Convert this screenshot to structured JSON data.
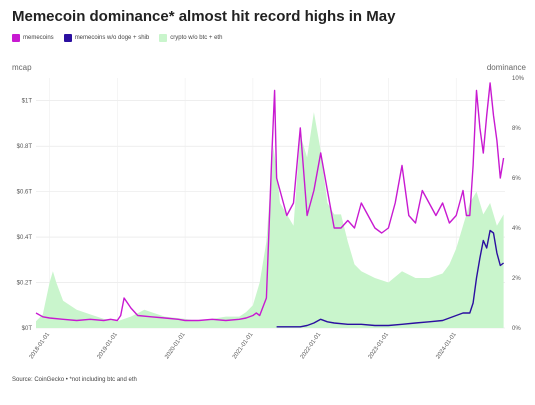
{
  "chart_data": {
    "type": "line",
    "title": "Memecoin dominance* almost hit record highs in May",
    "ylabel_left": "mcap",
    "ylabel_right": "dominance",
    "y_left_ticks": [
      "$0T",
      "$0.2T",
      "$0.4T",
      "$0.6T",
      "$0.8T",
      "$1T"
    ],
    "y_left_values": [
      0,
      0.2,
      0.4,
      0.6,
      0.8,
      1.0
    ],
    "y_right_ticks": [
      "0%",
      "2%",
      "4%",
      "6%",
      "8%",
      "10%"
    ],
    "y_right_values": [
      0,
      2,
      4,
      6,
      8,
      10
    ],
    "x_ticks": [
      "2018-01-01",
      "2019-01-01",
      "2020-01-01",
      "2021-01-01",
      "2022-01-01",
      "2023-01-01",
      "2024-01-01"
    ],
    "x_tick_years": [
      2018,
      2019,
      2020,
      2021,
      2022,
      2023,
      2024
    ],
    "xlim": [
      2017.8,
      2024.72
    ],
    "ylim_left": [
      0,
      1.1
    ],
    "ylim_right": [
      0,
      10
    ],
    "grid": true,
    "legend_position": "top-left",
    "series": [
      {
        "name": "memecoins",
        "axis": "right",
        "color": "#c81ad1",
        "style": "line",
        "x": [
          2017.8,
          2017.9,
          2018.0,
          2018.2,
          2018.4,
          2018.6,
          2018.8,
          2018.9,
          2019.0,
          2019.05,
          2019.1,
          2019.2,
          2019.3,
          2019.5,
          2019.7,
          2019.9,
          2020.0,
          2020.2,
          2020.4,
          2020.6,
          2020.8,
          2020.9,
          2021.0,
          2021.05,
          2021.1,
          2021.2,
          2021.28,
          2021.32,
          2021.35,
          2021.4,
          2021.45,
          2021.5,
          2021.6,
          2021.7,
          2021.8,
          2021.9,
          2022.0,
          2022.1,
          2022.2,
          2022.3,
          2022.4,
          2022.5,
          2022.6,
          2022.7,
          2022.8,
          2022.9,
          2023.0,
          2023.1,
          2023.2,
          2023.3,
          2023.4,
          2023.5,
          2023.6,
          2023.7,
          2023.8,
          2023.9,
          2024.0,
          2024.1,
          2024.15,
          2024.2,
          2024.25,
          2024.3,
          2024.35,
          2024.4,
          2024.45,
          2024.5,
          2024.55,
          2024.6,
          2024.65,
          2024.7
        ],
        "y": [
          0.6,
          0.45,
          0.4,
          0.35,
          0.3,
          0.35,
          0.3,
          0.35,
          0.3,
          0.5,
          1.2,
          0.8,
          0.5,
          0.45,
          0.4,
          0.35,
          0.3,
          0.3,
          0.35,
          0.3,
          0.35,
          0.4,
          0.5,
          0.6,
          0.5,
          1.2,
          7.0,
          9.5,
          6.0,
          5.5,
          5.0,
          4.5,
          5.0,
          8.0,
          4.5,
          5.5,
          7.0,
          5.5,
          4.0,
          4.0,
          4.3,
          4.0,
          5.0,
          4.5,
          4.0,
          3.8,
          4.0,
          5.0,
          6.5,
          4.5,
          4.2,
          5.5,
          5.0,
          4.5,
          5.0,
          4.2,
          4.5,
          5.5,
          4.5,
          4.5,
          6.5,
          9.5,
          8.0,
          7.0,
          8.5,
          9.8,
          8.5,
          7.5,
          6.0,
          6.8
        ]
      },
      {
        "name": "memecoins w/o doge + shib",
        "axis": "right",
        "color": "#2b0fa0",
        "style": "line",
        "x": [
          2021.35,
          2021.5,
          2021.7,
          2021.8,
          2021.9,
          2022.0,
          2022.1,
          2022.2,
          2022.4,
          2022.6,
          2022.8,
          2023.0,
          2023.2,
          2023.4,
          2023.6,
          2023.8,
          2023.9,
          2024.0,
          2024.1,
          2024.2,
          2024.25,
          2024.3,
          2024.35,
          2024.4,
          2024.45,
          2024.5,
          2024.55,
          2024.6,
          2024.65,
          2024.7
        ],
        "y": [
          0.05,
          0.05,
          0.05,
          0.1,
          0.2,
          0.35,
          0.25,
          0.2,
          0.15,
          0.15,
          0.1,
          0.1,
          0.15,
          0.2,
          0.25,
          0.3,
          0.4,
          0.5,
          0.6,
          0.6,
          1.0,
          2.0,
          2.8,
          3.5,
          3.2,
          3.9,
          3.8,
          3.0,
          2.5,
          2.6
        ]
      },
      {
        "name": "crypto w/o btc + eth",
        "axis": "left",
        "color": "#c9f5cc",
        "style": "area",
        "x": [
          2017.8,
          2017.9,
          2018.0,
          2018.05,
          2018.1,
          2018.2,
          2018.4,
          2018.6,
          2018.8,
          2019.0,
          2019.2,
          2019.4,
          2019.5,
          2019.7,
          2020.0,
          2020.2,
          2020.4,
          2020.6,
          2020.8,
          2020.9,
          2021.0,
          2021.1,
          2021.2,
          2021.3,
          2021.35,
          2021.4,
          2021.5,
          2021.6,
          2021.7,
          2021.8,
          2021.9,
          2022.0,
          2022.1,
          2022.2,
          2022.3,
          2022.4,
          2022.5,
          2022.6,
          2022.8,
          2023.0,
          2023.2,
          2023.4,
          2023.6,
          2023.8,
          2023.9,
          2024.0,
          2024.1,
          2024.2,
          2024.3,
          2024.4,
          2024.5,
          2024.6,
          2024.7
        ],
        "y": [
          0.03,
          0.06,
          0.2,
          0.25,
          0.2,
          0.12,
          0.08,
          0.06,
          0.04,
          0.03,
          0.05,
          0.08,
          0.07,
          0.05,
          0.04,
          0.03,
          0.04,
          0.05,
          0.05,
          0.07,
          0.1,
          0.2,
          0.38,
          0.8,
          0.7,
          0.55,
          0.5,
          0.45,
          0.85,
          0.75,
          0.95,
          0.78,
          0.55,
          0.5,
          0.5,
          0.38,
          0.28,
          0.25,
          0.22,
          0.2,
          0.25,
          0.22,
          0.22,
          0.24,
          0.28,
          0.35,
          0.45,
          0.55,
          0.6,
          0.5,
          0.55,
          0.45,
          0.5
        ]
      }
    ],
    "source": "Source: CoinGecko • *not including btc and eth"
  }
}
